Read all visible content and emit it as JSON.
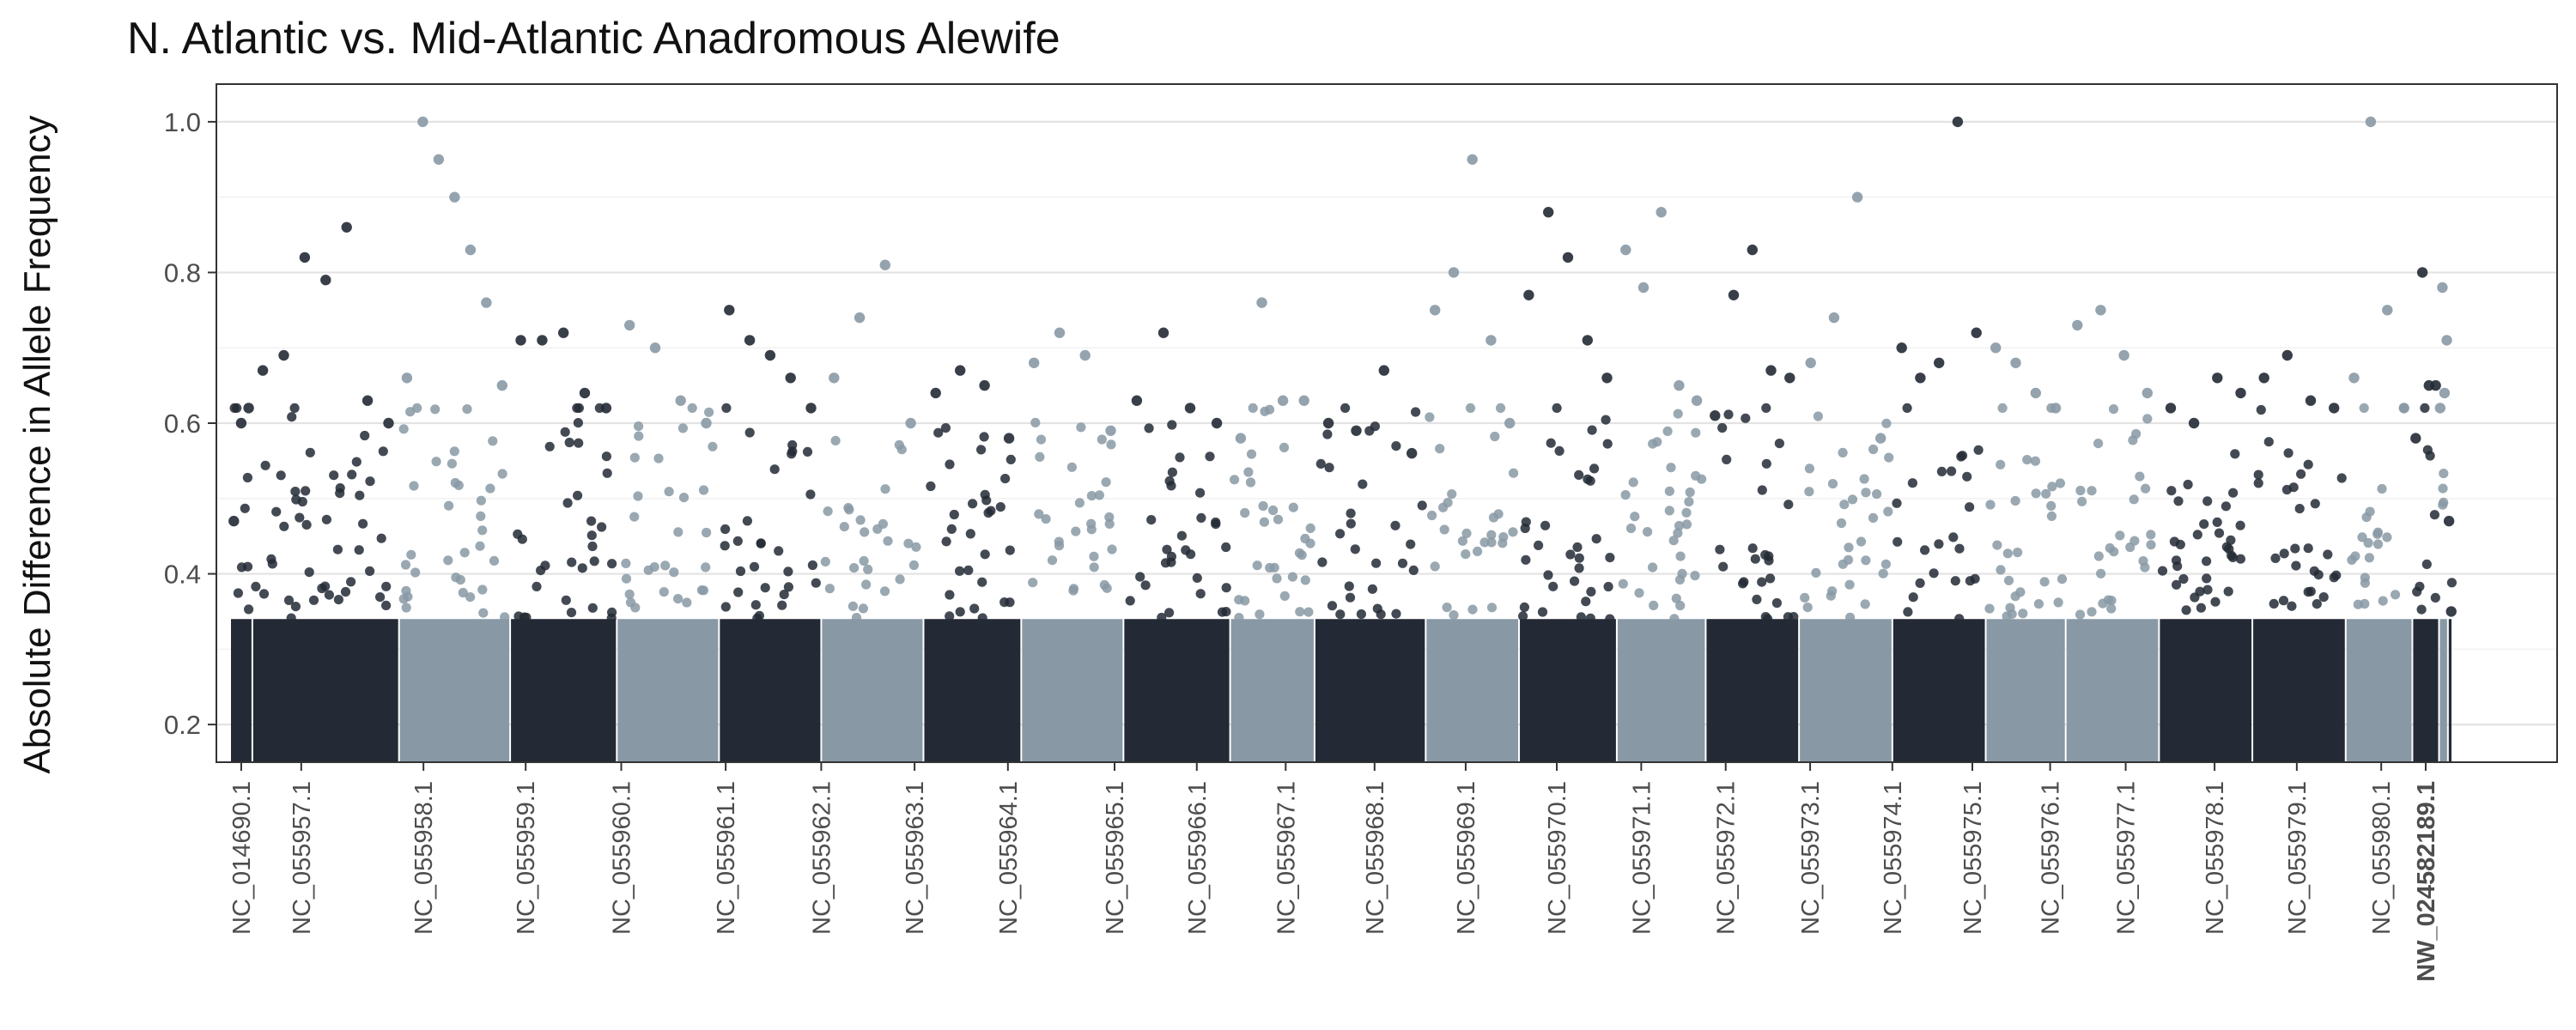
{
  "chart_data": {
    "type": "scatter",
    "title": "N. Atlantic vs. Mid-Atlantic Anadromous Alewife",
    "xlabel": "",
    "ylabel": "Absolute Difference in Allele Frequency",
    "ylim": [
      0.15,
      1.05
    ],
    "yticks": [
      "0.2",
      "0.4",
      "0.6",
      "0.8",
      "1.0"
    ],
    "grid": true,
    "colors": {
      "dark": "#232a35",
      "light": "#8899a5"
    },
    "x_unit": "chromosome bands, each spanning [start, end] on the shared genomic position axis (0-100)",
    "chromosomes": [
      {
        "name": "NC_014690.1",
        "start": 0.0,
        "end": 1.0,
        "peaks": [
          0.47,
          0.6,
          0.62
        ],
        "color": "dark"
      },
      {
        "name": "NC_055957.1",
        "start": 1.0,
        "end": 7.6,
        "peaks": [
          0.67,
          0.69,
          0.82,
          0.79,
          0.86,
          0.63,
          0.6
        ],
        "color": "dark"
      },
      {
        "name": "NC_055958.1",
        "start": 7.6,
        "end": 12.6,
        "peaks": [
          0.66,
          1.0,
          0.95,
          0.9,
          0.83,
          0.76,
          0.65
        ],
        "color": "light"
      },
      {
        "name": "NC_055959.1",
        "start": 12.6,
        "end": 17.4,
        "peaks": [
          0.71,
          0.71,
          0.72,
          0.64,
          0.62
        ],
        "color": "dark"
      },
      {
        "name": "NC_055960.1",
        "start": 17.4,
        "end": 22.0,
        "peaks": [
          0.73,
          0.7,
          0.63,
          0.6
        ],
        "color": "light"
      },
      {
        "name": "NC_055961.1",
        "start": 22.0,
        "end": 26.6,
        "peaks": [
          0.75,
          0.71,
          0.69,
          0.66,
          0.62
        ],
        "color": "dark"
      },
      {
        "name": "NC_055962.1",
        "start": 26.6,
        "end": 31.2,
        "peaks": [
          0.66,
          0.74,
          0.81,
          0.6
        ],
        "color": "light"
      },
      {
        "name": "NC_055963.1",
        "start": 31.2,
        "end": 35.6,
        "peaks": [
          0.64,
          0.67,
          0.65,
          0.58
        ],
        "color": "dark"
      },
      {
        "name": "NC_055964.1",
        "start": 35.6,
        "end": 40.2,
        "peaks": [
          0.68,
          0.72,
          0.69,
          0.59
        ],
        "color": "light"
      },
      {
        "name": "NC_055965.1",
        "start": 40.2,
        "end": 45.0,
        "peaks": [
          0.63,
          0.72,
          0.62,
          0.6
        ],
        "color": "dark"
      },
      {
        "name": "NC_055966.1",
        "start": 45.0,
        "end": 48.8,
        "peaks": [
          0.58,
          0.76,
          0.63,
          0.63
        ],
        "color": "light"
      },
      {
        "name": "NC_055967.1",
        "start": 48.8,
        "end": 53.8,
        "peaks": [
          0.6,
          0.59,
          0.67,
          0.56
        ],
        "color": "dark"
      },
      {
        "name": "NC_055968.1",
        "start": 53.8,
        "end": 58.0,
        "peaks": [
          0.75,
          0.8,
          0.95,
          0.71,
          0.6
        ],
        "color": "light"
      },
      {
        "name": "NC_055969.1",
        "start": 58.0,
        "end": 62.4,
        "peaks": [
          0.77,
          0.88,
          0.82,
          0.71,
          0.66
        ],
        "color": "dark"
      },
      {
        "name": "NC_055970.1",
        "start": 62.4,
        "end": 66.4,
        "peaks": [
          0.83,
          0.78,
          0.88,
          0.65,
          0.63
        ],
        "color": "light"
      },
      {
        "name": "NC_055971.1",
        "start": 66.4,
        "end": 70.6,
        "peaks": [
          0.61,
          0.77,
          0.83,
          0.67,
          0.66
        ],
        "color": "dark"
      },
      {
        "name": "NC_055972.1",
        "start": 70.6,
        "end": 74.8,
        "peaks": [
          0.68,
          0.74,
          0.9,
          0.58
        ],
        "color": "light"
      },
      {
        "name": "NC_055973.1",
        "start": 74.8,
        "end": 79.0,
        "peaks": [
          0.7,
          0.66,
          0.68,
          1.0,
          0.72
        ],
        "color": "dark"
      },
      {
        "name": "NC_055974.1",
        "start": 79.0,
        "end": 82.6,
        "peaks": [
          0.7,
          0.68,
          0.64,
          0.62
        ],
        "color": "light"
      },
      {
        "name": "NC_055975.1",
        "start": 82.6,
        "end": 86.8,
        "peaks": [
          0.73,
          0.75,
          0.69,
          0.64
        ],
        "color": "light"
      },
      {
        "name": "NC_055976.1",
        "start": 86.8,
        "end": 91.0,
        "peaks": [
          0.62,
          0.6,
          0.66,
          0.64
        ],
        "color": "dark"
      },
      {
        "name": "NC_055977.1",
        "start": 91.0,
        "end": 95.2,
        "peaks": [
          0.66,
          0.69,
          0.63,
          0.62
        ],
        "color": "dark"
      },
      {
        "name": "NC_055978.1",
        "start": 95.2,
        "end": 98.2,
        "peaks": [
          0.66,
          1.0,
          0.75,
          0.62
        ],
        "color": "light"
      },
      {
        "name": "NC_055979.1",
        "start": 98.2,
        "end": 99.4,
        "peaks": [
          0.58,
          0.8,
          0.65,
          0.65
        ],
        "color": "dark"
      },
      {
        "name": "NC_055980.1",
        "start": 99.4,
        "end": 99.8,
        "peaks": [
          0.62,
          0.78,
          0.64,
          0.71
        ],
        "color": "light"
      },
      {
        "name": "NW_024582189.1",
        "start": 99.8,
        "end": 100.0,
        "peaks": [
          0.47,
          0.35
        ],
        "color": "dark"
      }
    ],
    "x_tick_positions_pct": [
      0.5,
      3.2,
      8.7,
      13.3,
      17.6,
      22.3,
      26.6,
      30.8,
      35.0,
      39.8,
      43.5,
      47.5,
      51.5,
      55.6,
      59.7,
      63.5,
      67.3,
      71.1,
      74.8,
      78.4,
      81.9,
      85.3,
      89.3,
      93.0,
      96.8,
      98.8
    ]
  }
}
